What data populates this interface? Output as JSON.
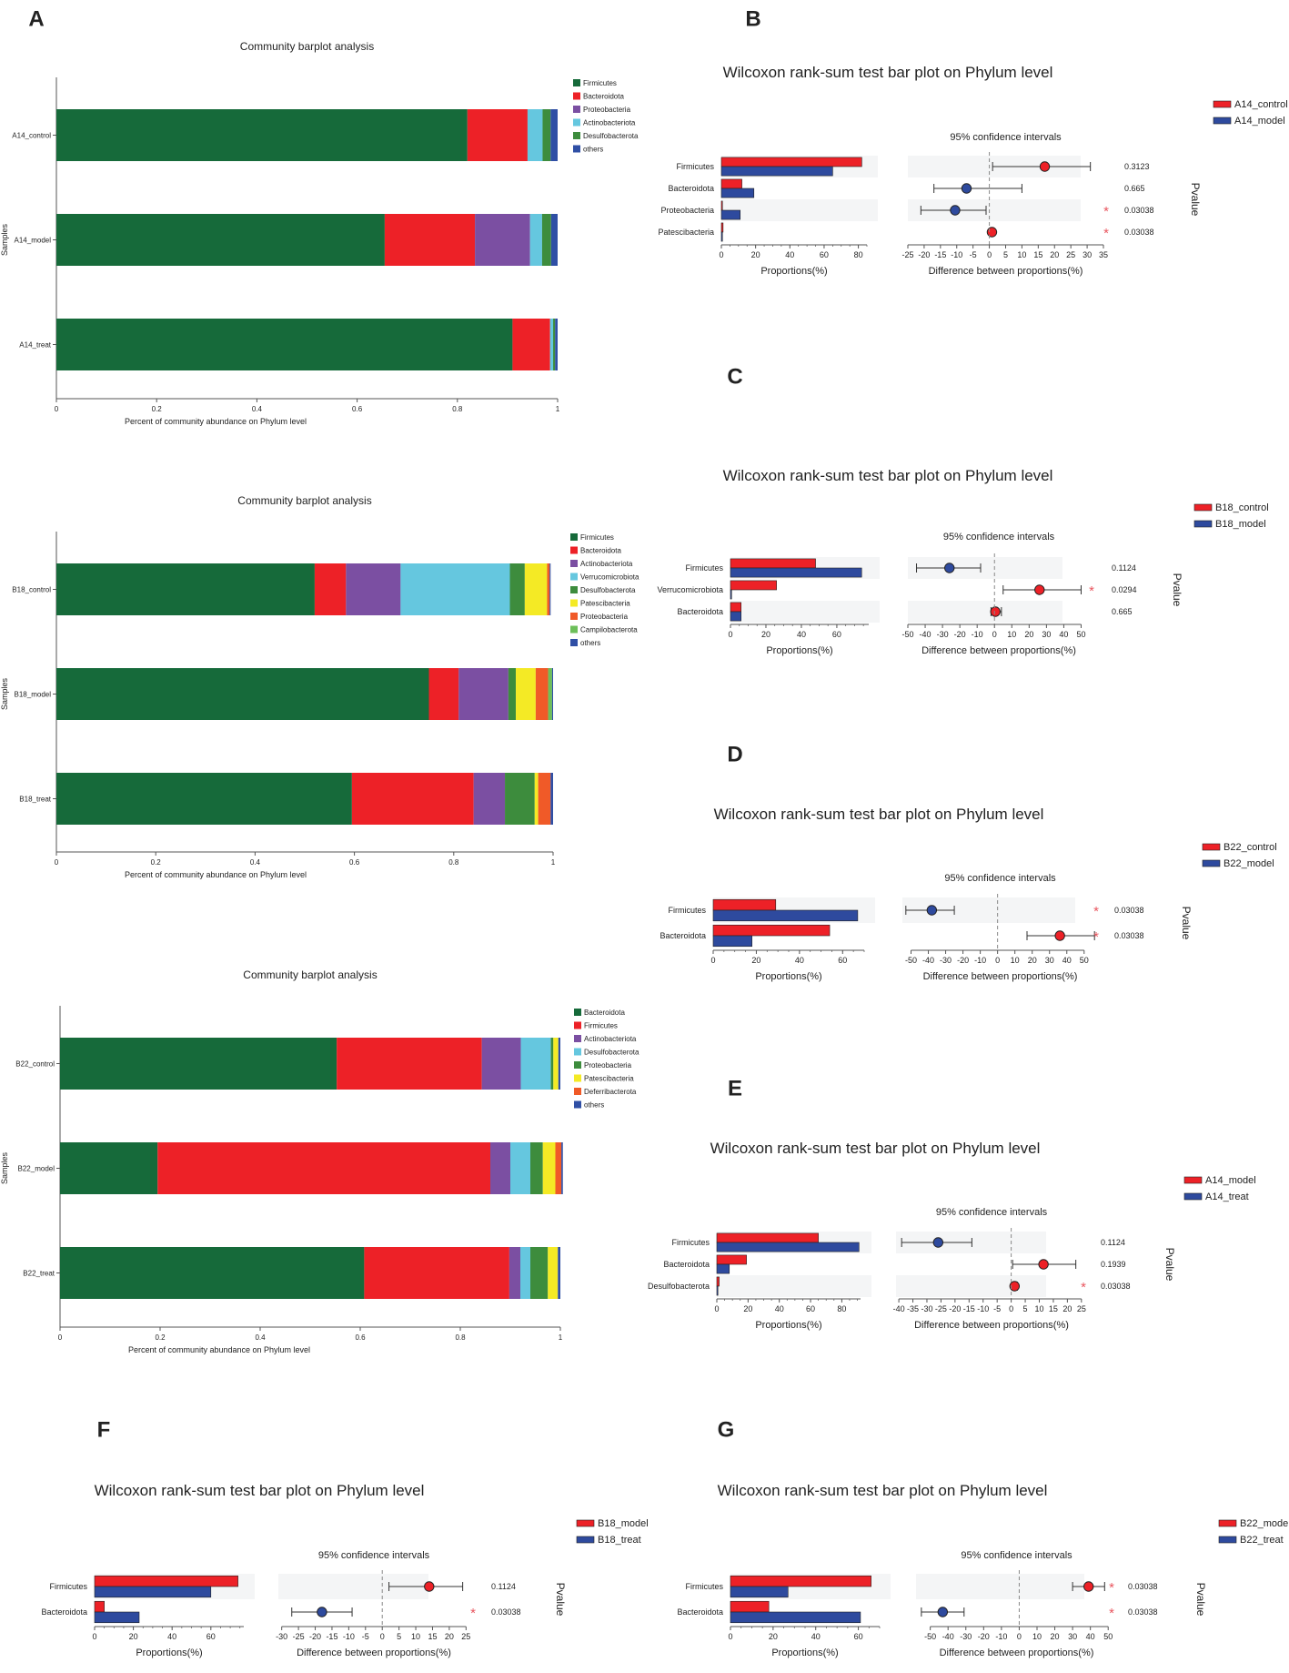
{
  "colors": {
    "control": "#ed2127",
    "model": "#2e4a9e",
    "shade": "#f4f5f6",
    "star": "#e9565f",
    "axis": "#555555"
  },
  "community": {
    "title": "Community barplot analysis",
    "ylabel": "Samples",
    "xlabel": "Percent of community abundance on Phylum level",
    "xticks": [
      "0",
      "0.2",
      "0.4",
      "0.6",
      "0.8",
      "1"
    ],
    "palette": {
      "Firmicutes": "#166a3a",
      "Bacteroidota": "#ed2127",
      "Proteobacteria": "#7b4fa2",
      "Actinobacteriota": "#65c7df",
      "Desulfobacterota": "#3d8c3d",
      "Verrucomicrobiota": "#65c7df",
      "Patescibacteria": "#f4ea25",
      "Campilobacterota": "#6dbf5a",
      "Deferribacterota": "#f05a28",
      "others": "#2f4fa5"
    }
  },
  "chart_data": [
    {
      "panel": "A",
      "type": "bar",
      "stacked": true,
      "orientation": "horizontal",
      "title": "Community barplot analysis",
      "xlabel": "Percent of community abundance on Phylum level",
      "ylabel": "Samples",
      "xlim": [
        0,
        1
      ],
      "samples": [
        "A14_control",
        "A14_model",
        "A14_treat"
      ],
      "legend": [
        "Firmicutes",
        "Bacteroidota",
        "Proteobacteria",
        "Actinobacteriota",
        "Desulfobacterota",
        "others"
      ],
      "series": [
        {
          "name": "Firmicutes",
          "color_key": "Firmicutes",
          "values": [
            0.82,
            0.655,
            0.91
          ]
        },
        {
          "name": "Bacteroidota",
          "color_key": "Bacteroidota",
          "values": [
            0.12,
            0.18,
            0.075
          ]
        },
        {
          "name": "Proteobacteria",
          "color_key": "Proteobacteria",
          "values": [
            0.0,
            0.11,
            0.0
          ]
        },
        {
          "name": "Actinobacteriota",
          "color_key": "Actinobacteriota",
          "values": [
            0.03,
            0.024,
            0.006
          ]
        },
        {
          "name": "Desulfobacterota",
          "color_key": "Desulfobacterota",
          "values": [
            0.016,
            0.018,
            0.004
          ]
        },
        {
          "name": "others",
          "color_key": "others",
          "values": [
            0.014,
            0.013,
            0.005
          ]
        }
      ]
    },
    {
      "panel": "C",
      "type": "bar",
      "stacked": true,
      "orientation": "horizontal",
      "title": "Community barplot analysis",
      "xlabel": "Percent of community abundance on Phylum level",
      "ylabel": "Samples",
      "xlim": [
        0,
        1
      ],
      "samples": [
        "B18_control",
        "B18_model",
        "B18_treat"
      ],
      "legend": [
        "Firmicutes",
        "Bacteroidota",
        "Actinobacteriota",
        "Verrucomicrobiota",
        "Desulfobacterota",
        "Patescibacteria",
        "Proteobacteria",
        "Campilobacterota",
        "others"
      ],
      "series": [
        {
          "name": "Firmicutes",
          "color_key": "Firmicutes",
          "values": [
            0.52,
            0.75,
            0.595
          ]
        },
        {
          "name": "Bacteroidota",
          "color_key": "Bacteroidota",
          "values": [
            0.063,
            0.06,
            0.245
          ]
        },
        {
          "name": "Actinobacteriota",
          "color_key": "Proteobacteria",
          "values": [
            0.11,
            0.1,
            0.063
          ]
        },
        {
          "name": "Verrucomicrobiota",
          "color_key": "Verrucomicrobiota",
          "values": [
            0.22,
            0.0,
            0.0
          ]
        },
        {
          "name": "Desulfobacterota",
          "color_key": "Desulfobacterota",
          "values": [
            0.03,
            0.015,
            0.06
          ]
        },
        {
          "name": "Patescibacteria",
          "color_key": "Patescibacteria",
          "values": [
            0.045,
            0.04,
            0.007
          ]
        },
        {
          "name": "Proteobacteria",
          "color_key": "Deferribacterota",
          "values": [
            0.005,
            0.025,
            0.025
          ]
        },
        {
          "name": "Campilobacterota",
          "color_key": "Campilobacterota",
          "values": [
            0.0,
            0.008,
            0.0
          ]
        },
        {
          "name": "others",
          "color_key": "others",
          "values": [
            0.002,
            0.002,
            0.005
          ]
        }
      ]
    },
    {
      "panel": "E",
      "type": "bar",
      "stacked": true,
      "orientation": "horizontal",
      "title": "Community barplot analysis",
      "xlabel": "Percent of community abundance on Phylum level",
      "ylabel": "Samples",
      "xlim": [
        0,
        1
      ],
      "samples": [
        "B22_control",
        "B22_model",
        "B22_treat"
      ],
      "legend": [
        "Bacteroidota",
        "Firmicutes",
        "Actinobacteriota",
        "Desulfobacterota",
        "Proteobacteria",
        "Patescibacteria",
        "Deferribacterota",
        "others"
      ],
      "series": [
        {
          "name": "Bacteroidota",
          "color_key": "Firmicutes",
          "values": [
            0.553,
            0.195,
            0.608
          ]
        },
        {
          "name": "Firmicutes",
          "color_key": "Bacteroidota",
          "values": [
            0.29,
            0.665,
            0.29
          ]
        },
        {
          "name": "Actinobacteriota",
          "color_key": "Proteobacteria",
          "values": [
            0.078,
            0.04,
            0.022
          ]
        },
        {
          "name": "Desulfobacterota",
          "color_key": "Actinobacteriota",
          "values": [
            0.06,
            0.04,
            0.02
          ]
        },
        {
          "name": "Proteobacteria",
          "color_key": "Desulfobacterota",
          "values": [
            0.005,
            0.025,
            0.035
          ]
        },
        {
          "name": "Patescibacteria",
          "color_key": "Patescibacteria",
          "values": [
            0.01,
            0.025,
            0.02
          ]
        },
        {
          "name": "Deferribacterota",
          "color_key": "Deferribacterota",
          "values": [
            0.0,
            0.012,
            0.0
          ]
        },
        {
          "name": "others",
          "color_key": "others",
          "values": [
            0.004,
            0.003,
            0.005
          ]
        }
      ]
    },
    {
      "panel": "B",
      "type": "wilcoxon",
      "title": "Wilcoxon rank-sum test bar plot on Phylum level",
      "ci_title": "95% confidence intervals",
      "xlabel_prop": "Proportions(%)",
      "xlabel_diff": "Difference between proportions(%)",
      "pvalue_label": "Pvalue",
      "groups": [
        "A14_control",
        "A14_model"
      ],
      "categories": [
        "Firmicutes",
        "Bacteroidota",
        "Proteobacteria",
        "Patescibacteria"
      ],
      "series": [
        {
          "name": "A14_control",
          "values": [
            82,
            12,
            0.5,
            1
          ]
        },
        {
          "name": "A14_model",
          "values": [
            65,
            19,
            11,
            0
          ]
        }
      ],
      "diff": [
        17,
        -7,
        -10.5,
        0.8
      ],
      "ci_low": [
        1,
        -17,
        -21,
        0.3
      ],
      "ci_high": [
        31,
        10,
        -1,
        1.3
      ],
      "pvalues": [
        "0.3123",
        "0.665",
        "0.03038",
        "0.03038"
      ],
      "significant": [
        false,
        false,
        true,
        true
      ],
      "prop_ticks": [
        0,
        20,
        40,
        60,
        80
      ],
      "diff_ticks": [
        -25,
        -20,
        -15,
        -10,
        -5,
        0,
        5,
        10,
        15,
        20,
        25,
        30,
        35
      ]
    },
    {
      "panel": "C",
      "type": "wilcoxon",
      "title": "Wilcoxon rank-sum test bar plot on Phylum level",
      "ci_title": "95% confidence intervals",
      "xlabel_prop": "Proportions(%)",
      "xlabel_diff": "Difference between proportions(%)",
      "pvalue_label": "Pvalue",
      "groups": [
        "B18_control",
        "B18_model"
      ],
      "categories": [
        "Firmicutes",
        "Verrucomicrobiota",
        "Bacteroidota"
      ],
      "series": [
        {
          "name": "B18_control",
          "values": [
            48,
            26,
            6
          ]
        },
        {
          "name": "B18_model",
          "values": [
            74,
            0,
            6
          ]
        }
      ],
      "diff": [
        -26,
        26,
        0.5
      ],
      "ci_low": [
        -45,
        5,
        -2
      ],
      "ci_high": [
        -8,
        50,
        4
      ],
      "pvalues": [
        "0.1124",
        "0.0294",
        "0.665"
      ],
      "significant": [
        false,
        true,
        false
      ],
      "prop_ticks": [
        0,
        20,
        40,
        60
      ],
      "diff_ticks": [
        -50,
        -40,
        -30,
        -20,
        -10,
        0,
        10,
        20,
        30,
        40,
        50
      ]
    },
    {
      "panel": "D",
      "type": "wilcoxon",
      "title": "Wilcoxon rank-sum test bar plot on Phylum level",
      "ci_title": "95% confidence intervals",
      "xlabel_prop": "Proportions(%)",
      "xlabel_diff": "Difference between proportions(%)",
      "pvalue_label": "Pvalue",
      "groups": [
        "B22_control",
        "B22_model"
      ],
      "categories": [
        "Firmicutes",
        "Bacteroidota"
      ],
      "series": [
        {
          "name": "B22_control",
          "values": [
            29,
            54
          ]
        },
        {
          "name": "B22_model",
          "values": [
            67,
            18
          ]
        }
      ],
      "diff": [
        -38,
        36
      ],
      "ci_low": [
        -53,
        17
      ],
      "ci_high": [
        -25,
        56
      ],
      "pvalues": [
        "0.03038",
        "0.03038"
      ],
      "significant": [
        true,
        true
      ],
      "prop_ticks": [
        0,
        20,
        40,
        60
      ],
      "diff_ticks": [
        -50,
        -40,
        -30,
        -20,
        -10,
        0,
        10,
        20,
        30,
        40,
        50
      ]
    },
    {
      "panel": "E",
      "type": "wilcoxon",
      "title": "Wilcoxon rank-sum test bar plot on Phylum level",
      "ci_title": "95% confidence intervals",
      "xlabel_prop": "Proportions(%)",
      "xlabel_diff": "Difference between proportions(%)",
      "pvalue_label": "Pvalue",
      "groups": [
        "A14_model",
        "A14_treat"
      ],
      "categories": [
        "Firmicutes",
        "Bacteroidota",
        "Desulfobacterota"
      ],
      "series": [
        {
          "name": "A14_model",
          "values": [
            65,
            19,
            1.5
          ]
        },
        {
          "name": "A14_treat",
          "values": [
            91,
            8,
            0.3
          ]
        }
      ],
      "diff": [
        -26,
        11.5,
        1.2
      ],
      "ci_low": [
        -39,
        0.5,
        0.3
      ],
      "ci_high": [
        -14,
        23,
        2.2
      ],
      "pvalues": [
        "0.1124",
        "0.1939",
        "0.03038"
      ],
      "significant": [
        false,
        false,
        true
      ],
      "prop_ticks": [
        0,
        20,
        40,
        60,
        80
      ],
      "diff_ticks": [
        -40,
        -35,
        -30,
        -25,
        -20,
        -15,
        -10,
        -5,
        0,
        5,
        10,
        15,
        20,
        25
      ]
    },
    {
      "panel": "F",
      "type": "wilcoxon",
      "title": "Wilcoxon rank-sum test bar plot on Phylum level",
      "ci_title": "95% confidence intervals",
      "xlabel_prop": "Proportions(%)",
      "xlabel_diff": "Difference between proportions(%)",
      "pvalue_label": "Pvalue",
      "groups": [
        "B18_model",
        "B18_treat"
      ],
      "categories": [
        "Firmicutes",
        "Bacteroidota"
      ],
      "series": [
        {
          "name": "B18_model",
          "values": [
            74,
            5
          ]
        },
        {
          "name": "B18_treat",
          "values": [
            60,
            23
          ]
        }
      ],
      "diff": [
        14,
        -18
      ],
      "ci_low": [
        2,
        -27
      ],
      "ci_high": [
        24,
        -9
      ],
      "pvalues": [
        "0.1124",
        "0.03038"
      ],
      "significant": [
        false,
        true
      ],
      "prop_ticks": [
        0,
        20,
        40,
        60
      ],
      "diff_ticks": [
        -30,
        -25,
        -20,
        -15,
        -10,
        -5,
        0,
        5,
        10,
        15,
        20,
        25
      ]
    },
    {
      "panel": "G",
      "type": "wilcoxon",
      "title": "Wilcoxon rank-sum test bar plot on Phylum level",
      "ci_title": "95% confidence intervals",
      "xlabel_prop": "Proportions(%)",
      "xlabel_diff": "Difference between proportions(%)",
      "pvalue_label": "Pvalue",
      "groups": [
        "B22_model",
        "B22_treat"
      ],
      "categories": [
        "Firmicutes",
        "Bacteroidota"
      ],
      "series": [
        {
          "name": "B22_model",
          "values": [
            66,
            18
          ]
        },
        {
          "name": "B22_treat",
          "values": [
            27,
            61
          ]
        }
      ],
      "diff": [
        39,
        -43
      ],
      "ci_low": [
        30,
        -55
      ],
      "ci_high": [
        48,
        -31
      ],
      "pvalues": [
        "0.03038",
        "0.03038"
      ],
      "significant": [
        true,
        true
      ],
      "prop_ticks": [
        0,
        20,
        40,
        60
      ],
      "diff_ticks": [
        -50,
        -40,
        -30,
        -20,
        -10,
        0,
        10,
        20,
        30,
        40,
        50
      ]
    }
  ],
  "panel_labels": [
    "A",
    "B",
    "C",
    "D",
    "E",
    "F",
    "G"
  ]
}
